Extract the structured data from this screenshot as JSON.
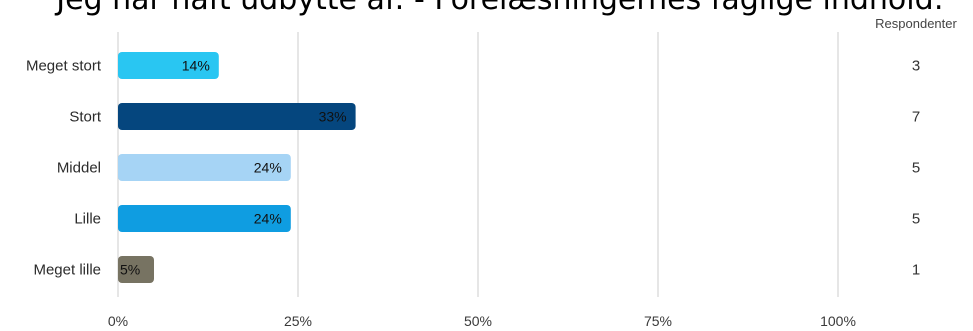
{
  "chart_data": {
    "type": "bar",
    "orientation": "horizontal",
    "title": "Jeg har haft udbytte af: - Forelæsningernes faglige indhold:",
    "categories": [
      "Meget stort",
      "Stort",
      "Middel",
      "Lille",
      "Meget lille"
    ],
    "values": [
      14,
      33,
      24,
      24,
      5
    ],
    "value_labels": [
      "14%",
      "33%",
      "24%",
      "24%",
      "5%"
    ],
    "respondents_header": "Respondenter",
    "respondents": [
      "3",
      "7",
      "5",
      "5",
      "1"
    ],
    "xticks": [
      "0%",
      "25%",
      "50%",
      "75%",
      "100%"
    ],
    "xlim": [
      0,
      100
    ],
    "grid": true,
    "colors": [
      "#29c6f2",
      "#05467e",
      "#a6d4f5",
      "#0f9de1",
      "#777362"
    ]
  }
}
